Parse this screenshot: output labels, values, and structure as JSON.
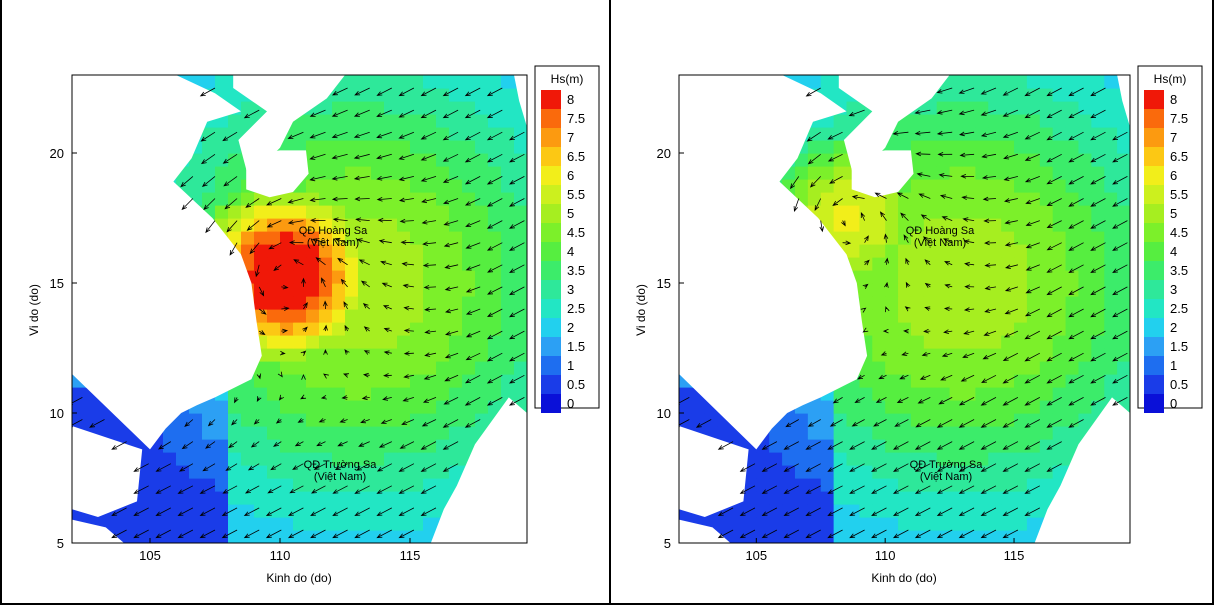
{
  "maps": [
    {
      "id": "left",
      "xlabel": "Kinh do (do)",
      "ylabel": "Vi do (do)",
      "x_ticks": [
        "105",
        "110",
        "115"
      ],
      "y_ticks": [
        "5",
        "10",
        "15",
        "20"
      ],
      "xlim": [
        102,
        119.5
      ],
      "ylim": [
        5,
        23
      ],
      "legend_title": "Hs(m)",
      "legend_labels": [
        "8",
        "7.5",
        "7",
        "6.5",
        "6",
        "5.5",
        "5",
        "4.5",
        "4",
        "3.5",
        "3",
        "2.5",
        "2",
        "1.5",
        "1",
        "0.5",
        "0"
      ],
      "annotations": [
        {
          "line1": "QĐ Hoàng Sa",
          "line2": "(Việt Nam)",
          "lon": 112.1,
          "lat": 16.6
        },
        {
          "line1": "QĐ Trường Sa",
          "line2": "(Việt Nam)",
          "lon": 112.4,
          "lat": 8.2
        }
      ],
      "storm_center": {
        "lon": 110.2,
        "lat": 15.3,
        "peak_hs": 8
      }
    },
    {
      "id": "right",
      "xlabel": "Kinh do (do)",
      "ylabel": "Vi do (do)",
      "x_ticks": [
        "105",
        "110",
        "115"
      ],
      "y_ticks": [
        "5",
        "10",
        "15",
        "20"
      ],
      "xlim": [
        102,
        119.5
      ],
      "ylim": [
        5,
        23
      ],
      "legend_title": "Hs(m)",
      "legend_labels": [
        "8",
        "7.5",
        "7",
        "6.5",
        "6",
        "5.5",
        "5",
        "4.5",
        "4",
        "3.5",
        "3",
        "2.5",
        "2",
        "1.5",
        "1",
        "0.5",
        "0"
      ],
      "annotations": [
        {
          "line1": "QĐ Hoàng Sa",
          "line2": "(Việt Nam)",
          "lon": 112.1,
          "lat": 16.6
        },
        {
          "line1": "QĐ Trường Sa",
          "line2": "(Việt Nam)",
          "lon": 112.4,
          "lat": 8.2
        }
      ],
      "storm_center": {
        "lon": 108.6,
        "lat": 17.5,
        "peak_hs": 5
      }
    }
  ],
  "colors": {
    "scale": [
      "#0a10d8",
      "#1a3ce8",
      "#1e6ef0",
      "#2ca0f4",
      "#22d0ee",
      "#22e6c4",
      "#2ee89a",
      "#3cec6a",
      "#56ee40",
      "#7cf02a",
      "#a6ee20",
      "#ccf01e",
      "#f2ee1a",
      "#fcc814",
      "#fc9a10",
      "#fa6a0c",
      "#f01808"
    ],
    "land": "#ffffff",
    "arrows": "#000000"
  }
}
